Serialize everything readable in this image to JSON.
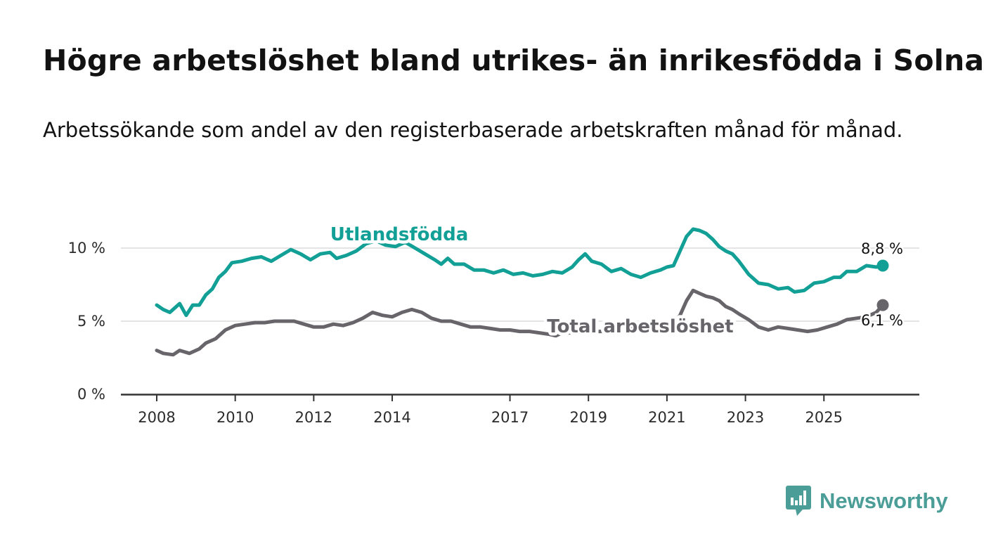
{
  "title": "Högre arbetslöshet bland utrikes- än inrikesfödda i Solna",
  "subtitle": "Arbetssökande som andel av den registerbaserade arbetskraften månad för månad.",
  "logo": {
    "text": "Newsworthy",
    "icon": "newsworthy-logo-icon",
    "color": "#4b9d97"
  },
  "chart_data": {
    "type": "line",
    "title": "Högre arbetslöshet bland utrikes- än inrikesfödda i Solna",
    "subtitle": "Arbetssökande som andel av den registerbaserade arbetskraften månad för månad.",
    "xlabel": "",
    "ylabel": "",
    "x_ticks": [
      "2008",
      "2010",
      "2012",
      "2014",
      "2017",
      "2019",
      "2021",
      "2023",
      "2025"
    ],
    "y_ticks": [
      "0 %",
      "5 %",
      "10 %"
    ],
    "ylim": [
      0,
      12
    ],
    "grid": "horizontal",
    "series": [
      {
        "name": "Utlandsfödda",
        "color": "#12a096",
        "end_label": "8,8 %",
        "points": [
          [
            "2008-01",
            6.1
          ],
          [
            "2008-03",
            5.8
          ],
          [
            "2008-05",
            5.6
          ],
          [
            "2008-08",
            6.2
          ],
          [
            "2008-10",
            5.4
          ],
          [
            "2008-12",
            6.1
          ],
          [
            "2009-02",
            6.1
          ],
          [
            "2009-04",
            6.8
          ],
          [
            "2009-06",
            7.2
          ],
          [
            "2009-08",
            8.0
          ],
          [
            "2009-10",
            8.4
          ],
          [
            "2009-12",
            9.0
          ],
          [
            "2010-03",
            9.1
          ],
          [
            "2010-06",
            9.3
          ],
          [
            "2010-09",
            9.4
          ],
          [
            "2010-12",
            9.1
          ],
          [
            "2011-03",
            9.5
          ],
          [
            "2011-06",
            9.9
          ],
          [
            "2011-09",
            9.6
          ],
          [
            "2011-12",
            9.2
          ],
          [
            "2012-03",
            9.6
          ],
          [
            "2012-06",
            9.7
          ],
          [
            "2012-08",
            9.3
          ],
          [
            "2012-11",
            9.5
          ],
          [
            "2013-02",
            9.8
          ],
          [
            "2013-05",
            10.3
          ],
          [
            "2013-08",
            10.5
          ],
          [
            "2013-11",
            10.2
          ],
          [
            "2014-02",
            10.1
          ],
          [
            "2014-05",
            10.4
          ],
          [
            "2014-08",
            10.0
          ],
          [
            "2014-11",
            9.6
          ],
          [
            "2015-02",
            9.2
          ],
          [
            "2015-04",
            8.9
          ],
          [
            "2015-06",
            9.3
          ],
          [
            "2015-08",
            8.9
          ],
          [
            "2015-11",
            8.9
          ],
          [
            "2016-02",
            8.5
          ],
          [
            "2016-05",
            8.5
          ],
          [
            "2016-08",
            8.3
          ],
          [
            "2016-11",
            8.5
          ],
          [
            "2017-02",
            8.2
          ],
          [
            "2017-05",
            8.3
          ],
          [
            "2017-08",
            8.1
          ],
          [
            "2017-11",
            8.2
          ],
          [
            "2018-02",
            8.4
          ],
          [
            "2018-05",
            8.3
          ],
          [
            "2018-08",
            8.7
          ],
          [
            "2018-10",
            9.2
          ],
          [
            "2018-12",
            9.6
          ],
          [
            "2019-02",
            9.1
          ],
          [
            "2019-05",
            8.9
          ],
          [
            "2019-08",
            8.4
          ],
          [
            "2019-11",
            8.6
          ],
          [
            "2020-02",
            8.2
          ],
          [
            "2020-05",
            8.0
          ],
          [
            "2020-08",
            8.3
          ],
          [
            "2020-11",
            8.5
          ],
          [
            "2021-01",
            8.7
          ],
          [
            "2021-03",
            8.8
          ],
          [
            "2021-05",
            9.8
          ],
          [
            "2021-07",
            10.8
          ],
          [
            "2021-09",
            11.3
          ],
          [
            "2021-11",
            11.2
          ],
          [
            "2022-01",
            11.0
          ],
          [
            "2022-03",
            10.6
          ],
          [
            "2022-05",
            10.1
          ],
          [
            "2022-07",
            9.8
          ],
          [
            "2022-09",
            9.6
          ],
          [
            "2022-11",
            9.1
          ],
          [
            "2023-02",
            8.2
          ],
          [
            "2023-05",
            7.6
          ],
          [
            "2023-08",
            7.5
          ],
          [
            "2023-11",
            7.2
          ],
          [
            "2024-02",
            7.3
          ],
          [
            "2024-04",
            7.0
          ],
          [
            "2024-07",
            7.1
          ],
          [
            "2024-10",
            7.6
          ],
          [
            "2025-01",
            7.7
          ],
          [
            "2025-04",
            8.0
          ],
          [
            "2025-06",
            8.0
          ],
          [
            "2025-08",
            8.4
          ],
          [
            "2025-11",
            8.4
          ],
          [
            "2026-02",
            8.8
          ],
          [
            "2026-05",
            8.7
          ],
          [
            "2026-07",
            8.8
          ]
        ]
      },
      {
        "name": "Total arbetslöshet",
        "color": "#67646a",
        "end_label": "6,1 %",
        "points": [
          [
            "2008-01",
            3.0
          ],
          [
            "2008-03",
            2.8
          ],
          [
            "2008-06",
            2.7
          ],
          [
            "2008-08",
            3.0
          ],
          [
            "2008-11",
            2.8
          ],
          [
            "2009-02",
            3.1
          ],
          [
            "2009-04",
            3.5
          ],
          [
            "2009-07",
            3.8
          ],
          [
            "2009-10",
            4.4
          ],
          [
            "2010-01",
            4.7
          ],
          [
            "2010-04",
            4.8
          ],
          [
            "2010-07",
            4.9
          ],
          [
            "2010-10",
            4.9
          ],
          [
            "2011-01",
            5.0
          ],
          [
            "2011-04",
            5.0
          ],
          [
            "2011-07",
            5.0
          ],
          [
            "2011-10",
            4.8
          ],
          [
            "2012-01",
            4.6
          ],
          [
            "2012-04",
            4.6
          ],
          [
            "2012-07",
            4.8
          ],
          [
            "2012-10",
            4.7
          ],
          [
            "2013-01",
            4.9
          ],
          [
            "2013-04",
            5.2
          ],
          [
            "2013-07",
            5.6
          ],
          [
            "2013-10",
            5.4
          ],
          [
            "2014-01",
            5.3
          ],
          [
            "2014-04",
            5.6
          ],
          [
            "2014-07",
            5.8
          ],
          [
            "2014-10",
            5.6
          ],
          [
            "2015-01",
            5.2
          ],
          [
            "2015-04",
            5.0
          ],
          [
            "2015-07",
            5.0
          ],
          [
            "2015-10",
            4.8
          ],
          [
            "2016-01",
            4.6
          ],
          [
            "2016-04",
            4.6
          ],
          [
            "2016-07",
            4.5
          ],
          [
            "2016-10",
            4.4
          ],
          [
            "2017-01",
            4.4
          ],
          [
            "2017-04",
            4.3
          ],
          [
            "2017-07",
            4.3
          ],
          [
            "2017-10",
            4.2
          ],
          [
            "2018-01",
            4.1
          ],
          [
            "2018-03",
            4.0
          ],
          [
            "2018-05",
            4.2
          ],
          [
            "2018-08",
            4.2
          ],
          [
            "2018-11",
            4.2
          ],
          [
            "2019-03",
            4.3
          ],
          [
            "2019-07",
            4.3
          ],
          [
            "2019-11",
            4.4
          ],
          [
            "2020-03",
            4.5
          ],
          [
            "2020-07",
            4.6
          ],
          [
            "2020-11",
            4.7
          ],
          [
            "2021-02",
            4.6
          ],
          [
            "2021-05",
            5.4
          ],
          [
            "2021-07",
            6.4
          ],
          [
            "2021-09",
            7.1
          ],
          [
            "2021-11",
            6.9
          ],
          [
            "2022-01",
            6.7
          ],
          [
            "2022-03",
            6.6
          ],
          [
            "2022-05",
            6.4
          ],
          [
            "2022-07",
            6.0
          ],
          [
            "2022-09",
            5.8
          ],
          [
            "2022-11",
            5.5
          ],
          [
            "2023-02",
            5.1
          ],
          [
            "2023-05",
            4.6
          ],
          [
            "2023-08",
            4.4
          ],
          [
            "2023-11",
            4.6
          ],
          [
            "2024-02",
            4.5
          ],
          [
            "2024-05",
            4.4
          ],
          [
            "2024-08",
            4.3
          ],
          [
            "2024-11",
            4.4
          ],
          [
            "2025-02",
            4.6
          ],
          [
            "2025-05",
            4.8
          ],
          [
            "2025-08",
            5.1
          ],
          [
            "2025-11",
            5.2
          ],
          [
            "2026-02",
            5.3
          ],
          [
            "2026-05",
            5.6
          ],
          [
            "2026-07",
            6.1
          ]
        ]
      }
    ]
  }
}
